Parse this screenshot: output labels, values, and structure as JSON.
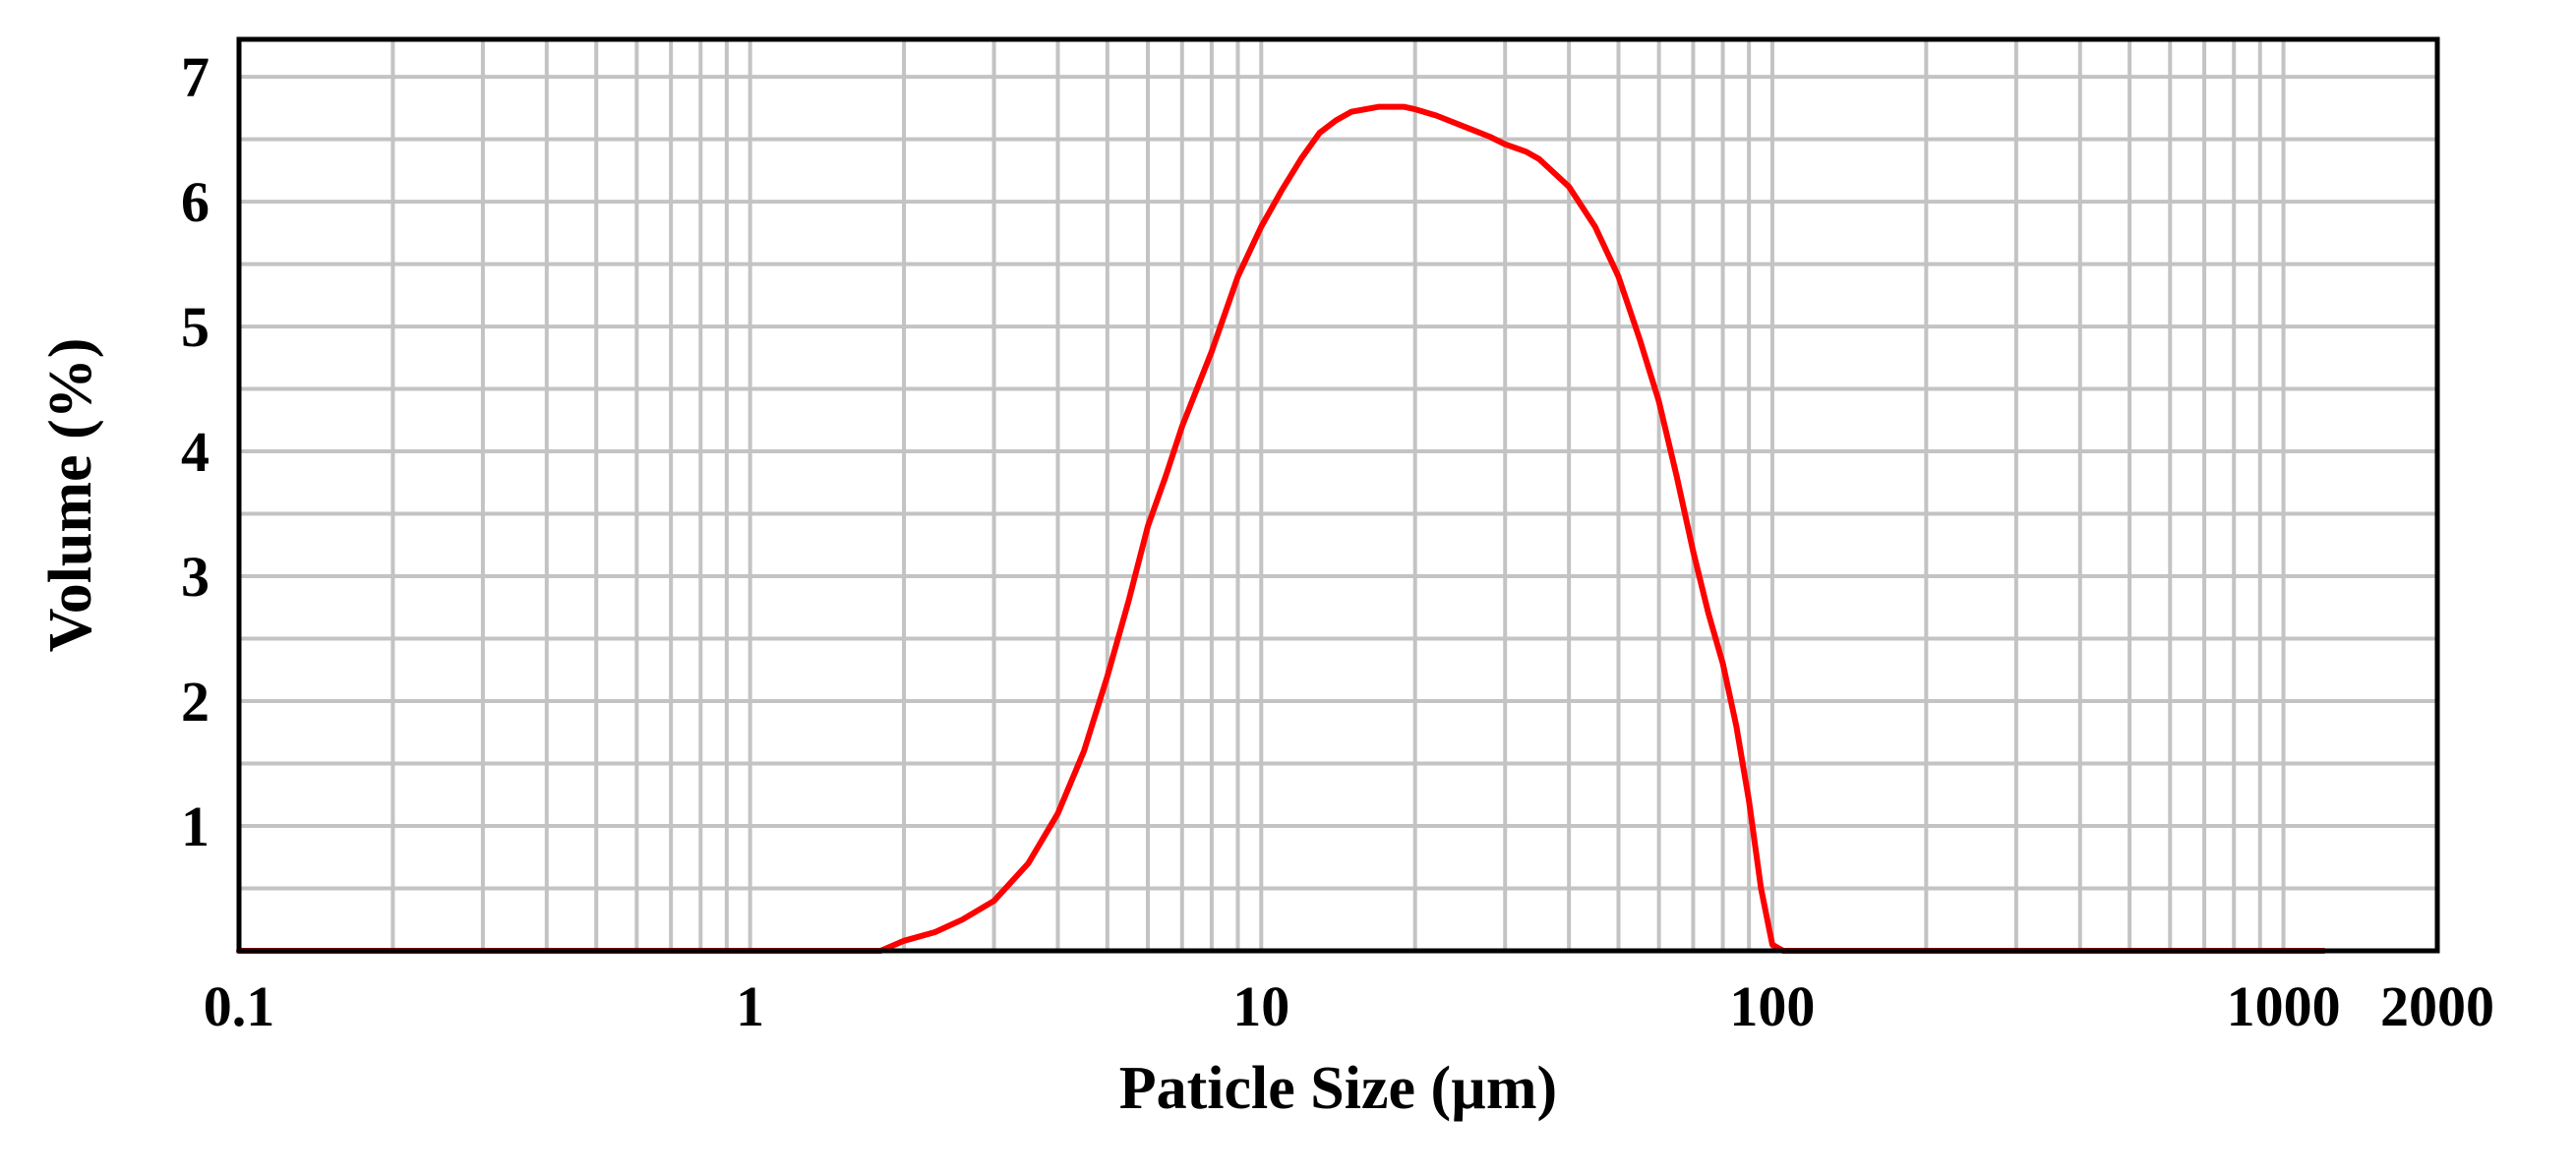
{
  "chart_data": {
    "type": "line",
    "title": "",
    "xlabel": "Paticle Size (µm)",
    "ylabel": "Volume (%)",
    "xscale": "log",
    "xlim": [
      0.1,
      2000
    ],
    "ylim": [
      0,
      7.3
    ],
    "grid": true,
    "x_ticks": [
      {
        "value": 0.1,
        "label": "0.1"
      },
      {
        "value": 1,
        "label": "1"
      },
      {
        "value": 10,
        "label": "10"
      },
      {
        "value": 100,
        "label": "100"
      },
      {
        "value": 1000,
        "label": "1000"
      },
      {
        "value": 2000,
        "label": "2000"
      }
    ],
    "y_ticks": [
      {
        "value": 1,
        "label": "1"
      },
      {
        "value": 2,
        "label": "2"
      },
      {
        "value": 3,
        "label": "3"
      },
      {
        "value": 4,
        "label": "4"
      },
      {
        "value": 5,
        "label": "5"
      },
      {
        "value": 6,
        "label": "6"
      },
      {
        "value": 7,
        "label": "7"
      }
    ],
    "series": [
      {
        "name": "Volume",
        "color": "#ff0000",
        "x": [
          0.1,
          0.5,
          1,
          1.5,
          1.8,
          2,
          2.3,
          2.6,
          3,
          3.5,
          4,
          4.5,
          5,
          5.5,
          6,
          6.5,
          7,
          8,
          9,
          10,
          11,
          12,
          13,
          14,
          15,
          17,
          19,
          20,
          22,
          25,
          28,
          30,
          33,
          35,
          40,
          45,
          50,
          55,
          60,
          65,
          70,
          75,
          80,
          85,
          90,
          95,
          100,
          105,
          110,
          115,
          1200
        ],
        "values": [
          0,
          0,
          0,
          0,
          0,
          0.08,
          0.15,
          0.25,
          0.4,
          0.7,
          1.1,
          1.6,
          2.2,
          2.8,
          3.4,
          3.8,
          4.2,
          4.8,
          5.4,
          5.8,
          6.1,
          6.35,
          6.55,
          6.65,
          6.72,
          6.76,
          6.76,
          6.74,
          6.69,
          6.6,
          6.52,
          6.46,
          6.4,
          6.34,
          6.12,
          5.8,
          5.4,
          4.9,
          4.4,
          3.8,
          3.2,
          2.7,
          2.3,
          1.8,
          1.2,
          0.5,
          0.05,
          0,
          0,
          0,
          0
        ]
      }
    ]
  }
}
